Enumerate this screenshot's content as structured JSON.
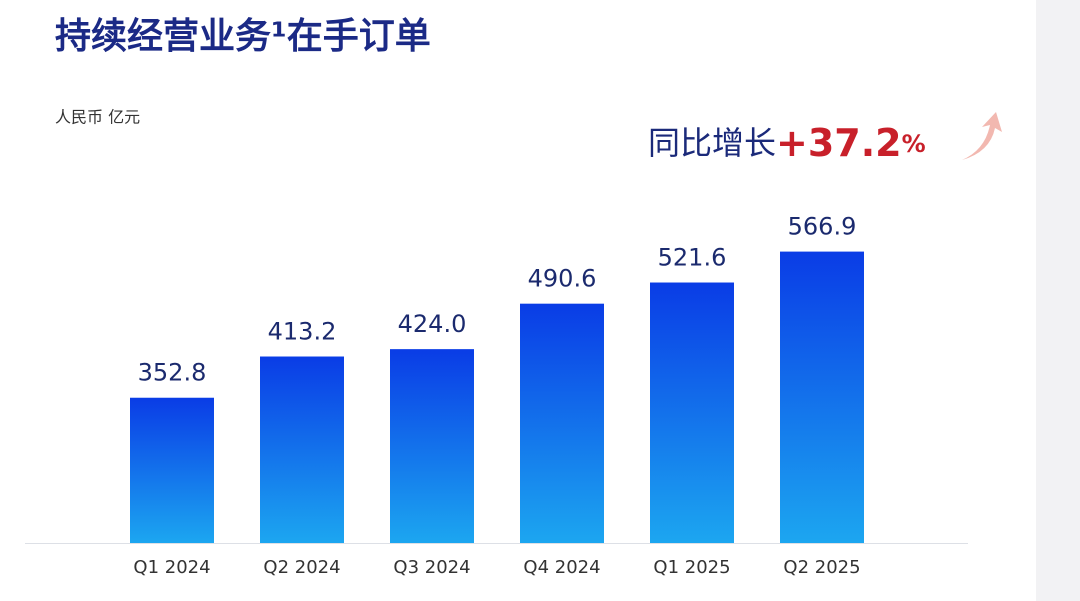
{
  "chart_data": {
    "type": "bar",
    "title": "持续经营业务¹在手订单",
    "subtitle": "人民币 亿元",
    "annotation": {
      "label": "同比增长",
      "value": "+37.2",
      "unit": "%"
    },
    "categories": [
      "Q1 2024",
      "Q2 2024",
      "Q3 2024",
      "Q4 2024",
      "Q1 2025",
      "Q2 2025"
    ],
    "values": [
      352.8,
      413.2,
      424.0,
      490.6,
      521.6,
      566.9
    ],
    "value_labels": [
      "352.8",
      "413.2",
      "424.0",
      "490.6",
      "521.6",
      "566.9"
    ],
    "gradient": [
      "#0a3ce6",
      "#1ca6f0"
    ],
    "ylim": [
      140,
      600
    ]
  }
}
